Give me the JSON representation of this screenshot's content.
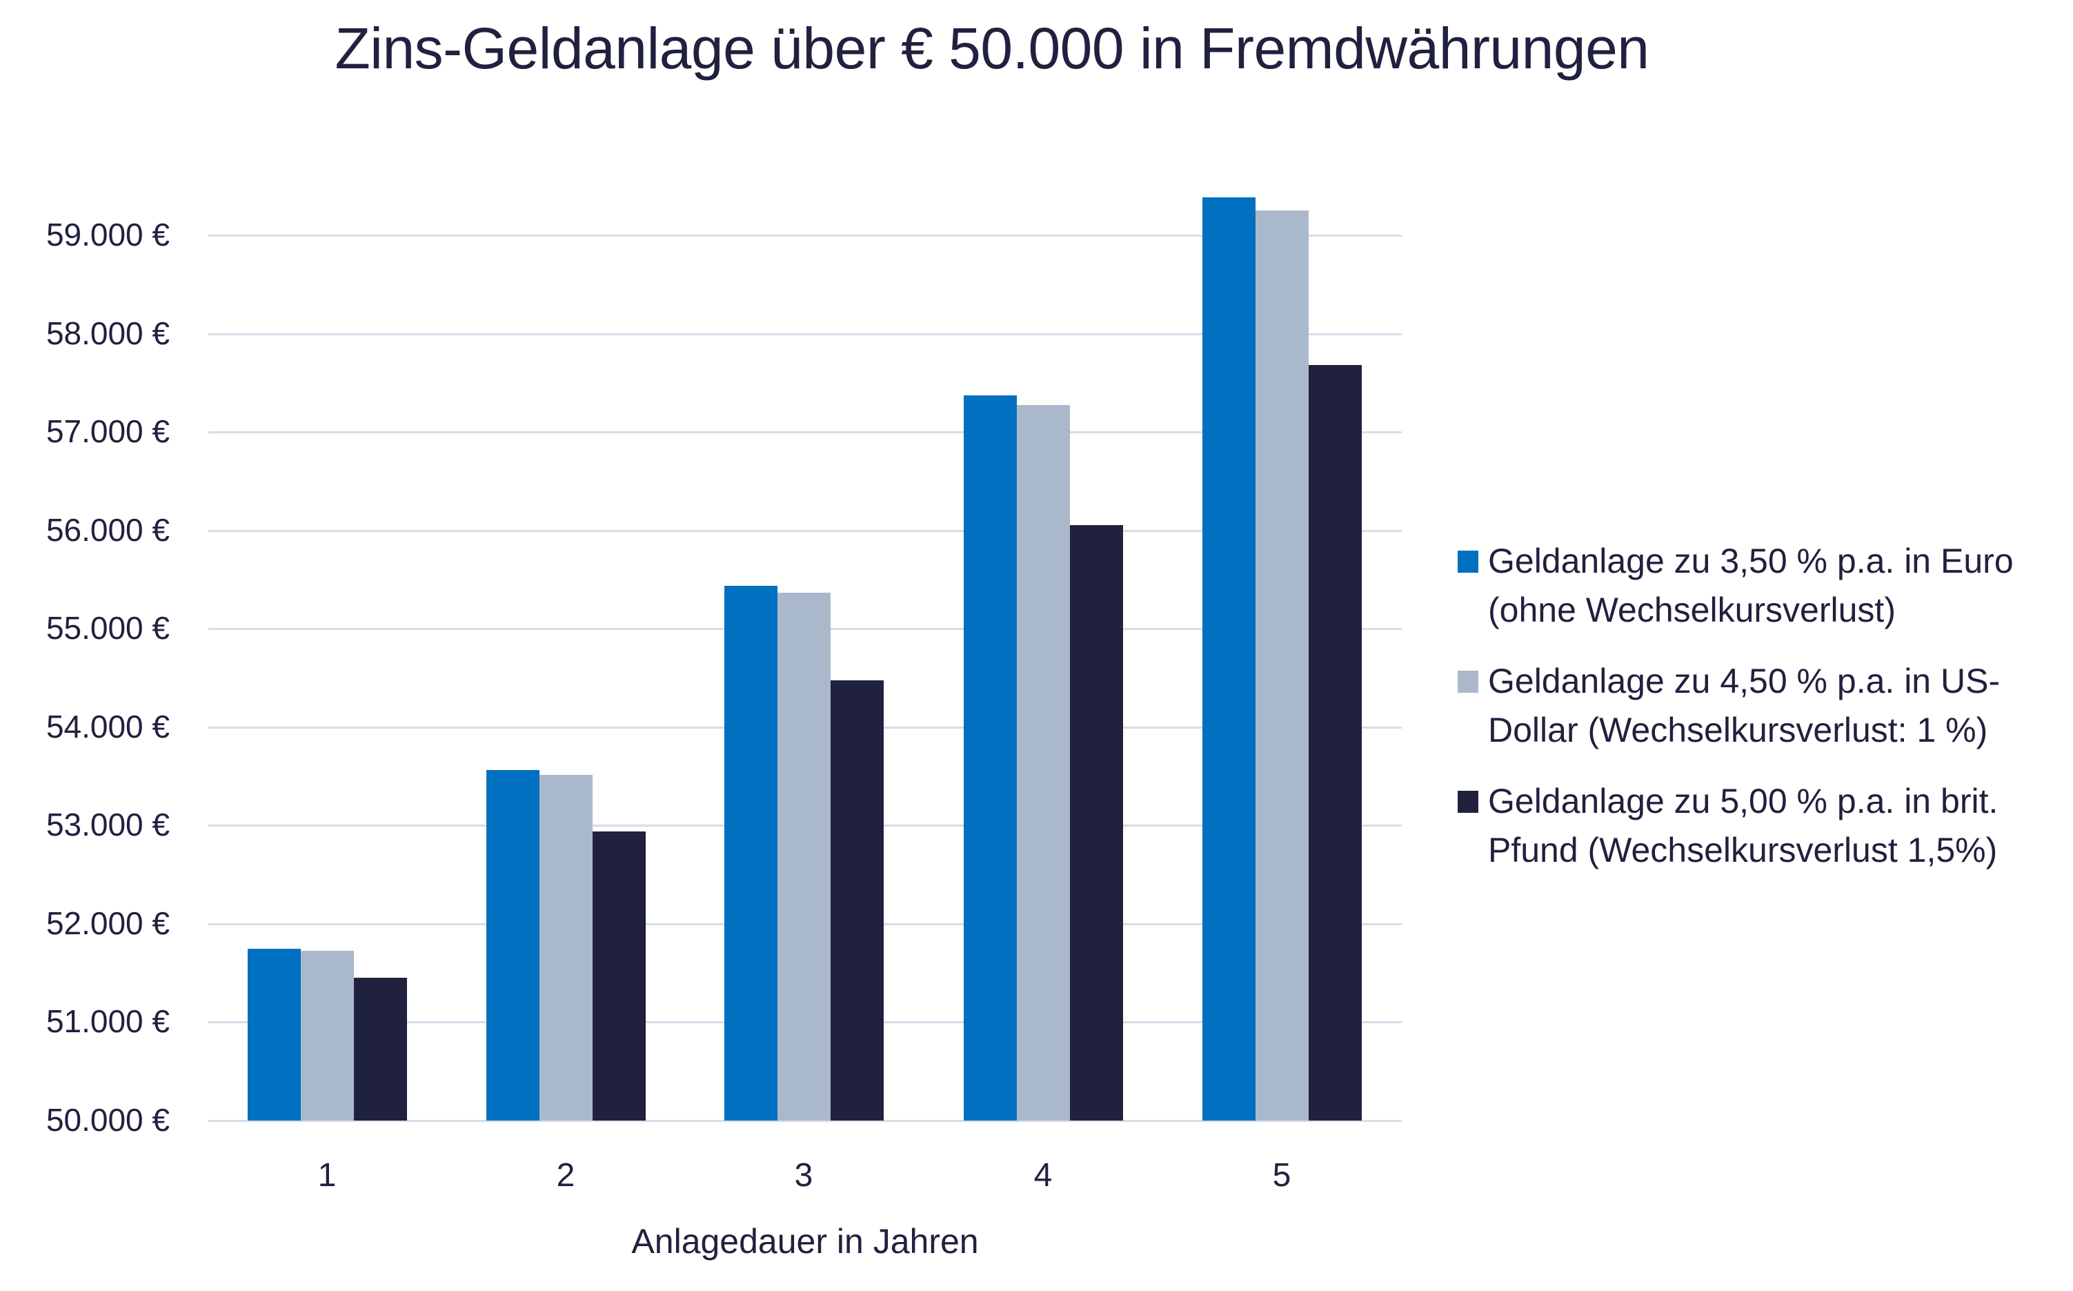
{
  "title": "Zins-Geldanlage über € 50.000 in Fremdwährungen",
  "colors": {
    "euro": "#0070c0",
    "usd": "#a9b9cb",
    "gbp": "#20213f",
    "grid": "#d9dbe9",
    "text": "#20213f"
  },
  "y_axis": {
    "ticks": [
      "50.000 €",
      "51.000 €",
      "52.000 €",
      "53.000 €",
      "54.000 €",
      "55.000 €",
      "56.000 €",
      "57.000 €",
      "58.000 €",
      "59.000 €"
    ]
  },
  "x_axis": {
    "ticks": [
      "1",
      "2",
      "3",
      "4",
      "5"
    ],
    "title": "Anlagedauer in Jahren"
  },
  "legend": [
    {
      "label": "Geldanlage zu 3,50 % p.a. in Euro (ohne Wechselkursverlust)",
      "color": "#0070c0"
    },
    {
      "label": "Geldanlage zu 4,50 % p.a. in US-Dollar (Wechselkursverlust: 1 %)",
      "color": "#a9b9cb"
    },
    {
      "label": "Geldanlage zu 5,00 % p.a. in brit. Pfund (Wechselkursverlust 1,5%)",
      "color": "#20213f"
    }
  ],
  "chart_data": {
    "type": "bar",
    "title": "Zins-Geldanlage über € 50.000 in Fremdwährungen",
    "xlabel": "Anlagedauer in Jahren",
    "ylabel": "",
    "categories": [
      "1",
      "2",
      "3",
      "4",
      "5"
    ],
    "series": [
      {
        "name": "Geldanlage zu 3,50 % p.a. in Euro (ohne Wechselkursverlust)",
        "color": "#0070c0",
        "values": [
          51750,
          53561,
          55436,
          57376,
          59384
        ]
      },
      {
        "name": "Geldanlage zu 4,50 % p.a. in US-Dollar (Wechselkursverlust: 1 %)",
        "color": "#a9b9cb",
        "values": [
          51728,
          53515,
          55364,
          57276,
          59255
        ]
      },
      {
        "name": "Geldanlage zu 5,00 % p.a. in brit. Pfund (Wechselkursverlust 1,5%)",
        "color": "#20213f",
        "values": [
          51450,
          52942,
          54477,
          56057,
          57683
        ]
      }
    ],
    "ylim": [
      50000,
      59500
    ],
    "yticks": [
      50000,
      51000,
      52000,
      53000,
      54000,
      55000,
      56000,
      57000,
      58000,
      59000
    ],
    "grid": true,
    "legend_position": "right"
  }
}
